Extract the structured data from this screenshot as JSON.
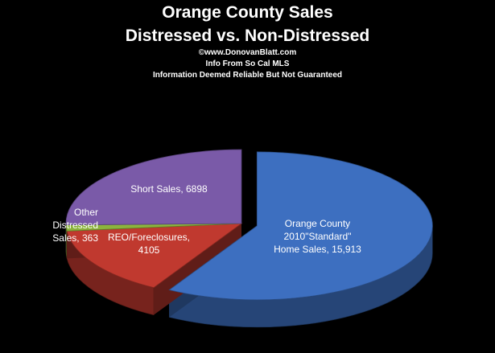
{
  "chart_data": {
    "type": "pie",
    "title": "Orange County Sales",
    "subtitle": "Distressed vs. Non-Distressed",
    "notes": [
      "©www.DonovanBlatt.com",
      "Info  From So Cal MLS",
      "Information Deemed Reliable But Not Guaranteed"
    ],
    "slices": [
      {
        "label_lines": [
          "Orange County",
          "2010\"Standard\"",
          "Home Sales, 15,913"
        ],
        "value": 15913,
        "color": "#3d6fc0",
        "exploded": true
      },
      {
        "label_lines": [
          "REO/Foreclosures,",
          "4105"
        ],
        "value": 4105,
        "color": "#c0392f",
        "exploded": false
      },
      {
        "label_lines": [
          "Other Distressed",
          "Sales, 363"
        ],
        "value": 363,
        "color": "#8cb43d",
        "exploded": false
      },
      {
        "label_lines": [
          "Short Sales, 6898"
        ],
        "value": 6898,
        "color": "#7a5aa8",
        "exploded": false
      }
    ]
  }
}
